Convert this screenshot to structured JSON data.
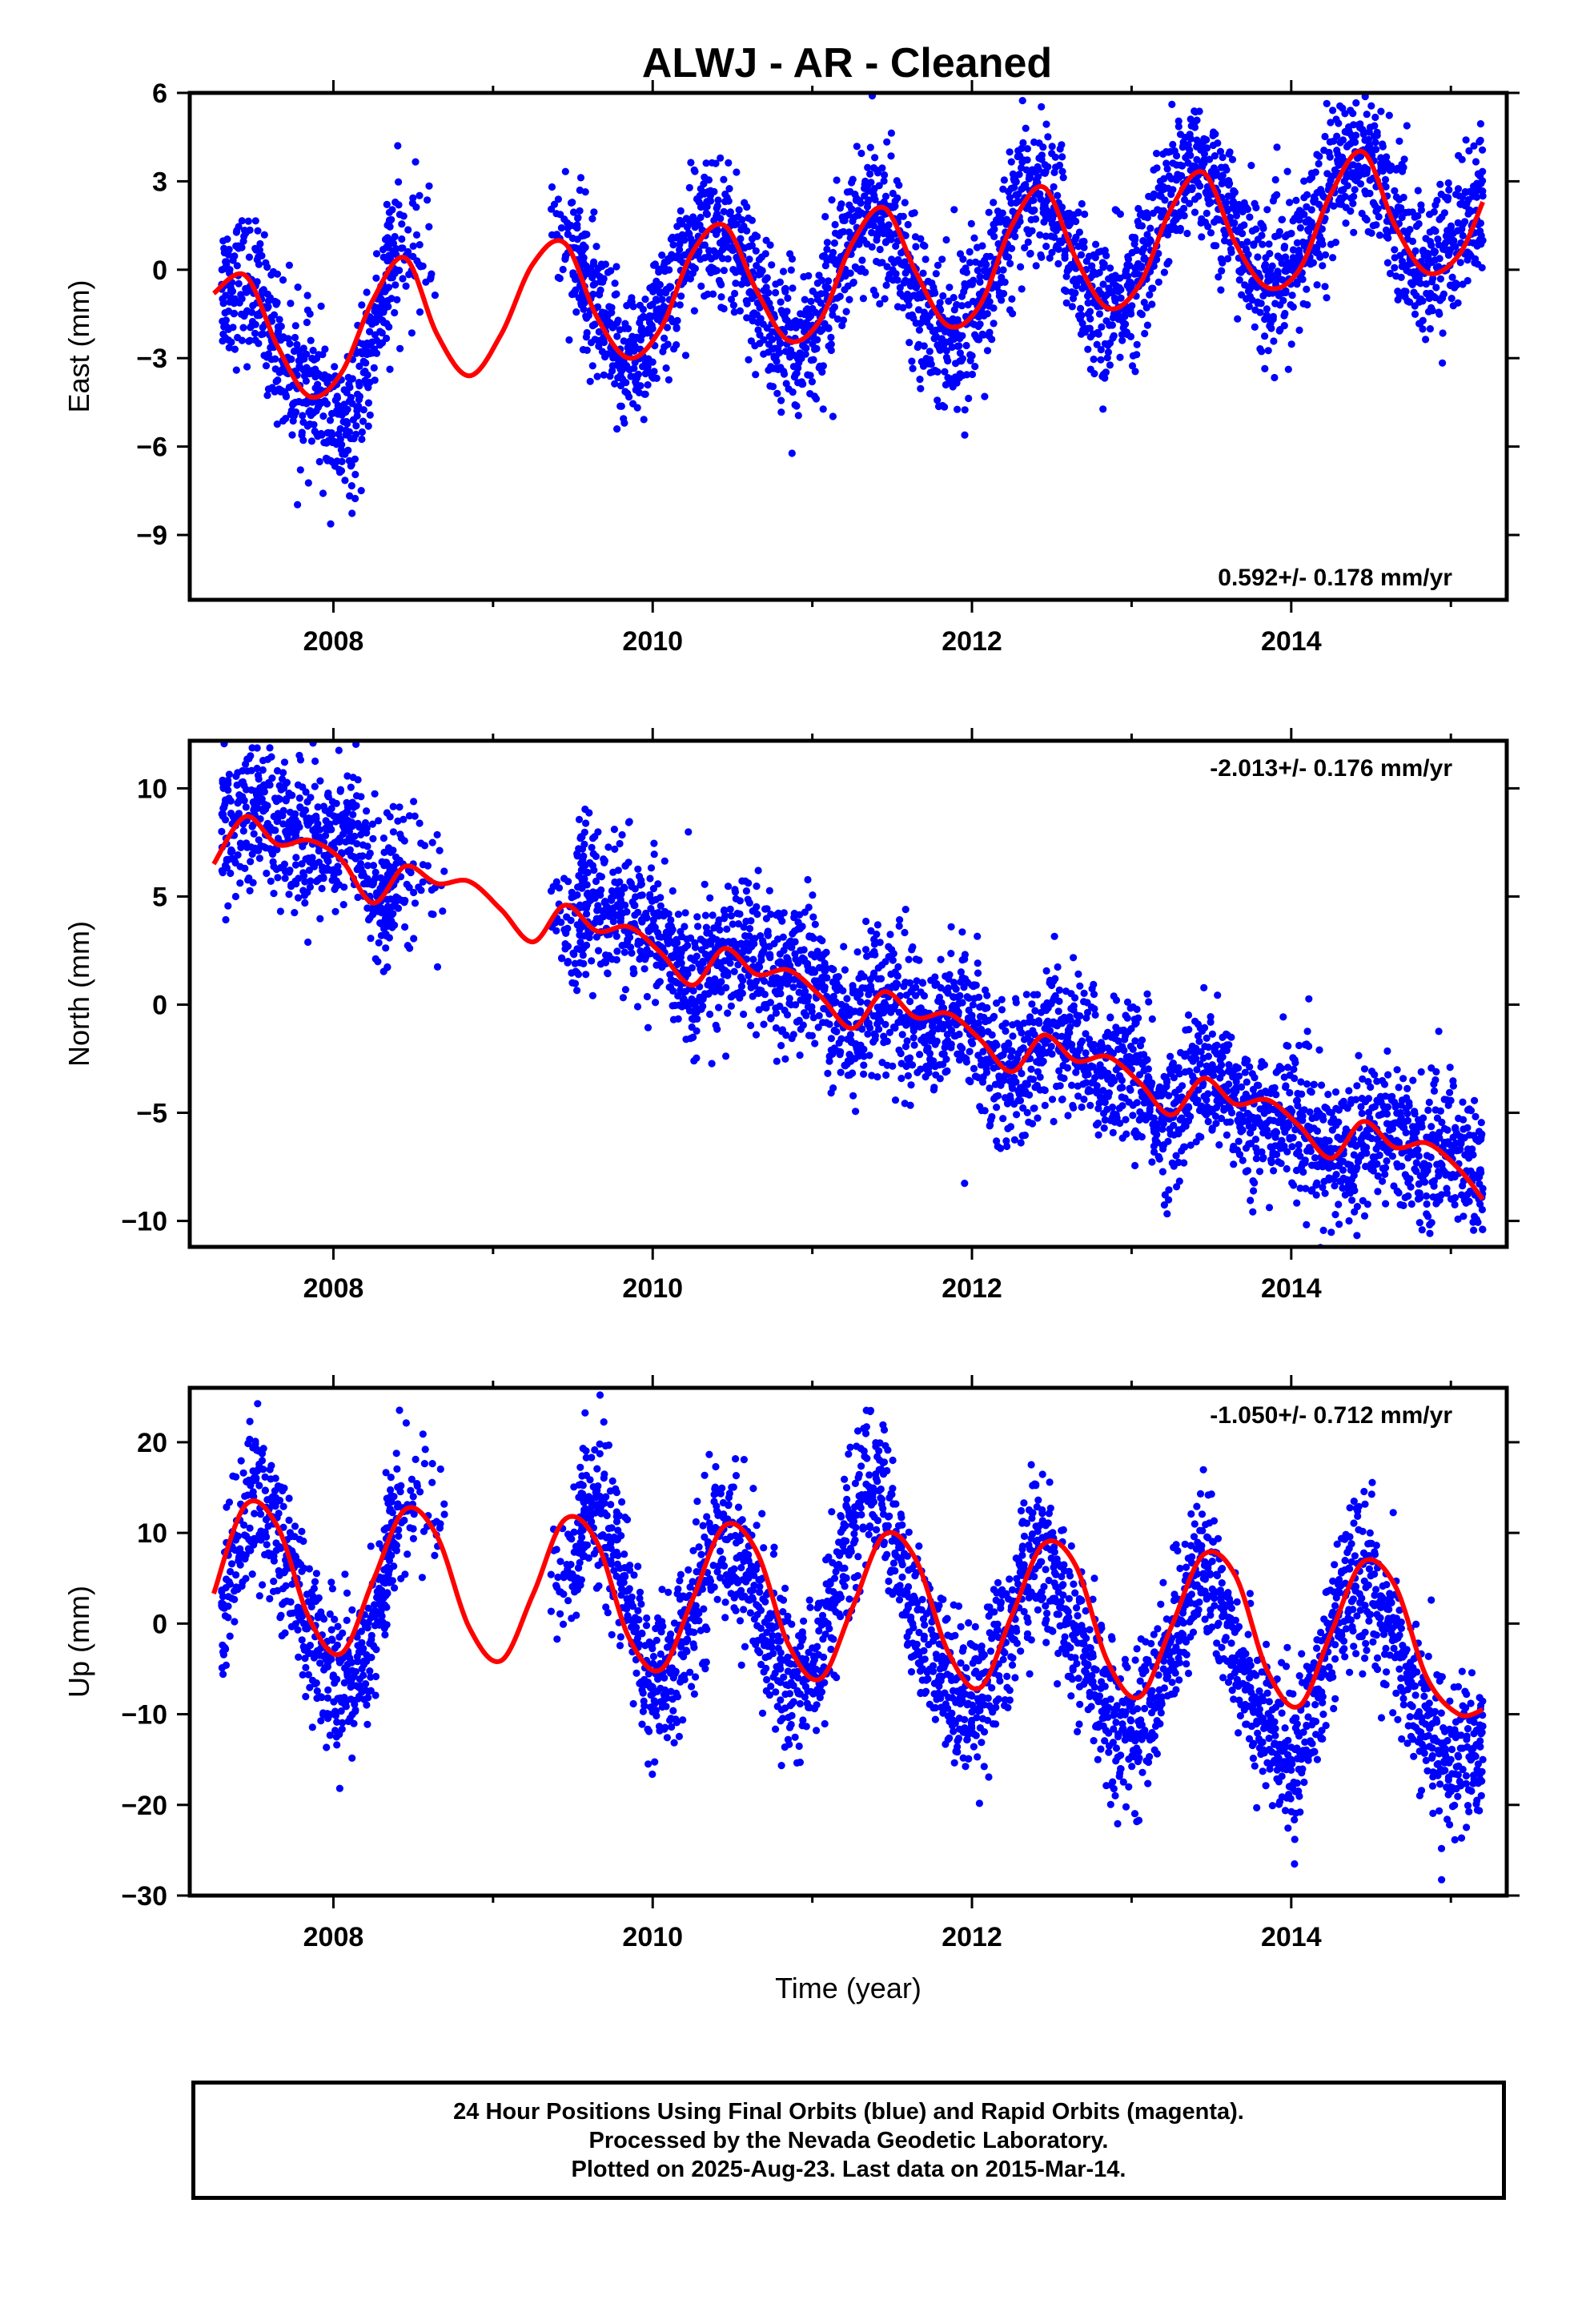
{
  "title": "ALWJ  - AR - Cleaned",
  "colors": {
    "points": "#0000ff",
    "fit": "#ff0000",
    "frame": "#000000"
  },
  "caption": {
    "line1": "24 Hour Positions Using Final Orbits (blue) and Rapid Orbits (magenta).",
    "line2": "Processed by the Nevada Geodetic Laboratory.",
    "line3": "Plotted on 2025-Aug-23. Last data on 2015-Mar-14."
  },
  "chart_data": [
    {
      "type": "scatter",
      "ylabel": "East (mm)",
      "xlabel": "",
      "xlim": [
        2007.1,
        2015.35
      ],
      "ylim": [
        -11.2,
        6
      ],
      "xticks": [
        2008,
        2010,
        2012,
        2014
      ],
      "yticks": [
        6,
        3,
        0,
        -3,
        -6,
        -9
      ],
      "rate": "0.592+/- 0.178 mm/yr",
      "rate_position": "bottom-right",
      "data_gap": [
        2008.65,
        2009.35
      ],
      "series": [
        {
          "role": "daily positions",
          "marker": "dot",
          "color": "#0000ff",
          "x": [
            2007.3,
            2007.5,
            2007.7,
            2007.9,
            2008.1,
            2008.3,
            2008.5,
            2009.4,
            2009.6,
            2009.8,
            2010.0,
            2010.2,
            2010.4,
            2010.6,
            2010.8,
            2011.0,
            2011.2,
            2011.4,
            2011.6,
            2011.8,
            2012.0,
            2012.2,
            2012.4,
            2012.6,
            2012.8,
            2013.0,
            2013.2,
            2013.4,
            2013.6,
            2013.8,
            2014.0,
            2014.2,
            2014.4,
            2014.6,
            2014.8,
            2015.0,
            2015.2
          ],
          "y": [
            -0.5,
            -0.8,
            -3.2,
            -4.5,
            -5.5,
            -1.0,
            0.8,
            1.2,
            -1.0,
            -3.0,
            -2.0,
            0.5,
            1.5,
            -0.2,
            -2.5,
            -2.0,
            0.5,
            2.0,
            0.0,
            -2.0,
            -1.5,
            1.0,
            2.8,
            1.0,
            -1.5,
            -0.5,
            2.0,
            3.5,
            2.0,
            -0.3,
            0.0,
            2.5,
            4.0,
            2.5,
            0.0,
            1.0,
            2.5
          ]
        },
        {
          "role": "model fit",
          "marker": "line",
          "color": "#ff0000",
          "x": [
            2007.25,
            2007.45,
            2007.65,
            2007.85,
            2008.05,
            2008.25,
            2008.45,
            2008.65,
            2008.85,
            2009.05,
            2009.25,
            2009.45,
            2009.65,
            2009.85,
            2010.05,
            2010.25,
            2010.45,
            2010.65,
            2010.85,
            2011.05,
            2011.25,
            2011.45,
            2011.65,
            2011.85,
            2012.05,
            2012.25,
            2012.45,
            2012.65,
            2012.85,
            2013.05,
            2013.25,
            2013.45,
            2013.65,
            2013.85,
            2014.05,
            2014.25,
            2014.45,
            2014.65,
            2014.85,
            2015.05,
            2015.2
          ],
          "y": [
            -0.8,
            -0.2,
            -2.6,
            -4.3,
            -3.5,
            -1.0,
            0.4,
            -2.2,
            -3.6,
            -2.2,
            0.2,
            0.9,
            -1.6,
            -3.0,
            -2.0,
            0.6,
            1.5,
            -0.7,
            -2.4,
            -1.7,
            0.9,
            2.1,
            -0.1,
            -1.9,
            -1.2,
            1.5,
            2.8,
            0.4,
            -1.3,
            -0.5,
            2.1,
            3.3,
            0.9,
            -0.6,
            0.0,
            2.6,
            4.0,
            1.5,
            -0.1,
            0.5,
            2.3
          ]
        }
      ]
    },
    {
      "type": "scatter",
      "ylabel": "North (mm)",
      "xlabel": "",
      "xlim": [
        2007.1,
        2015.35
      ],
      "ylim": [
        -11.2,
        12.2
      ],
      "xticks": [
        2008,
        2010,
        2012,
        2014
      ],
      "yticks": [
        10,
        5,
        0,
        -5,
        -10
      ],
      "rate": "-2.013+/- 0.176 mm/yr",
      "rate_position": "top-right",
      "data_gap": [
        2008.7,
        2009.35
      ],
      "series": [
        {
          "role": "daily positions",
          "marker": "dot",
          "color": "#0000ff",
          "x": [
            2007.3,
            2007.5,
            2007.7,
            2007.9,
            2008.1,
            2008.3,
            2008.5,
            2009.4,
            2009.6,
            2009.8,
            2010.0,
            2010.2,
            2010.4,
            2010.6,
            2010.8,
            2011.0,
            2011.2,
            2011.4,
            2011.6,
            2011.8,
            2012.0,
            2012.2,
            2012.4,
            2012.6,
            2012.8,
            2013.0,
            2013.2,
            2013.4,
            2013.6,
            2013.8,
            2014.0,
            2014.2,
            2014.4,
            2014.6,
            2014.8,
            2015.0,
            2015.2
          ],
          "y": [
            8.0,
            9.0,
            8.0,
            7.5,
            8.0,
            5.0,
            6.5,
            4.0,
            5.0,
            4.0,
            3.5,
            1.0,
            2.0,
            2.5,
            1.0,
            1.5,
            -1.0,
            0.5,
            -0.5,
            -1.0,
            -0.5,
            -3.5,
            -2.0,
            -1.5,
            -3.0,
            -3.0,
            -5.5,
            -3.5,
            -4.0,
            -5.5,
            -5.0,
            -7.0,
            -6.5,
            -5.5,
            -7.0,
            -6.5,
            -8.5
          ]
        },
        {
          "role": "model fit",
          "marker": "line",
          "color": "#ff0000",
          "x": [
            2007.25,
            2007.45,
            2007.65,
            2007.85,
            2008.05,
            2008.25,
            2008.45,
            2008.65,
            2008.85,
            2009.05,
            2009.25,
            2009.45,
            2009.65,
            2009.85,
            2010.05,
            2010.25,
            2010.45,
            2010.65,
            2010.85,
            2011.05,
            2011.25,
            2011.45,
            2011.65,
            2011.85,
            2012.05,
            2012.25,
            2012.45,
            2012.65,
            2012.85,
            2013.05,
            2013.25,
            2013.45,
            2013.65,
            2013.85,
            2014.05,
            2014.25,
            2014.45,
            2014.65,
            2014.85,
            2015.05,
            2015.2
          ],
          "y": [
            6.5,
            8.7,
            7.4,
            7.6,
            6.7,
            4.7,
            6.4,
            5.6,
            5.7,
            4.4,
            2.9,
            4.6,
            3.4,
            3.6,
            2.4,
            0.9,
            2.6,
            1.4,
            1.6,
            0.4,
            -1.1,
            0.6,
            -0.6,
            -0.4,
            -1.6,
            -3.1,
            -1.4,
            -2.6,
            -2.4,
            -3.6,
            -5.1,
            -3.4,
            -4.6,
            -4.4,
            -5.6,
            -7.1,
            -5.4,
            -6.6,
            -6.4,
            -7.6,
            -9.0
          ]
        }
      ]
    },
    {
      "type": "scatter",
      "ylabel": "Up (mm)",
      "xlabel": "Time (year)",
      "xlim": [
        2007.1,
        2015.35
      ],
      "ylim": [
        -30,
        26
      ],
      "xticks": [
        2008,
        2010,
        2012,
        2014
      ],
      "yticks": [
        20,
        10,
        0,
        -10,
        -20,
        -30
      ],
      "rate": "-1.050+/- 0.712 mm/yr",
      "rate_position": "top-right",
      "data_gap": [
        2008.7,
        2009.35
      ],
      "series": [
        {
          "role": "daily positions",
          "marker": "dot",
          "color": "#0000ff",
          "x": [
            2007.3,
            2007.5,
            2007.7,
            2007.9,
            2008.1,
            2008.3,
            2008.5,
            2009.4,
            2009.6,
            2009.8,
            2010.0,
            2010.2,
            2010.4,
            2010.6,
            2010.8,
            2011.0,
            2011.2,
            2011.4,
            2011.6,
            2011.8,
            2012.0,
            2012.2,
            2012.4,
            2012.6,
            2012.8,
            2013.0,
            2013.2,
            2013.4,
            2013.6,
            2013.8,
            2014.0,
            2014.2,
            2014.4,
            2014.6,
            2014.8,
            2015.0,
            2015.2
          ],
          "y": [
            2.0,
            14.0,
            7.0,
            -3.0,
            -6.0,
            3.0,
            14.0,
            4.0,
            14.0,
            5.0,
            -7.0,
            -2.0,
            10.0,
            5.0,
            -5.0,
            -5.0,
            8.0,
            16.0,
            2.0,
            -5.0,
            -8.0,
            -2.0,
            8.0,
            0.0,
            -8.0,
            -12.0,
            -5.0,
            6.0,
            0.0,
            -10.0,
            -15.0,
            -5.0,
            5.0,
            0.0,
            -10.0,
            -15.0,
            -15.0
          ]
        },
        {
          "role": "model fit",
          "marker": "line",
          "color": "#ff0000",
          "x": [
            2007.25,
            2007.45,
            2007.65,
            2007.85,
            2008.05,
            2008.25,
            2008.45,
            2008.65,
            2008.85,
            2009.05,
            2009.25,
            2009.45,
            2009.65,
            2009.85,
            2010.05,
            2010.25,
            2010.45,
            2010.65,
            2010.85,
            2011.05,
            2011.25,
            2011.45,
            2011.65,
            2011.85,
            2012.05,
            2012.25,
            2012.45,
            2012.65,
            2012.85,
            2013.05,
            2013.25,
            2013.45,
            2013.65,
            2013.85,
            2014.05,
            2014.25,
            2014.45,
            2014.65,
            2014.85,
            2015.05,
            2015.2
          ],
          "y": [
            3.3,
            13.1,
            10.7,
            0.5,
            -3.3,
            4.8,
            12.6,
            9.6,
            -0.4,
            -4.1,
            3.2,
            11.5,
            9.0,
            -1.5,
            -5.1,
            2.7,
            10.8,
            8.0,
            -2.3,
            -6.1,
            1.7,
            9.8,
            7.0,
            -3.1,
            -7.1,
            0.9,
            8.8,
            6.4,
            -4.2,
            -8.1,
            -0.3,
            7.6,
            5.3,
            -5.2,
            -9.1,
            -1.0,
            6.8,
            4.2,
            -6.0,
            -10.0,
            -9.5
          ]
        }
      ]
    }
  ]
}
